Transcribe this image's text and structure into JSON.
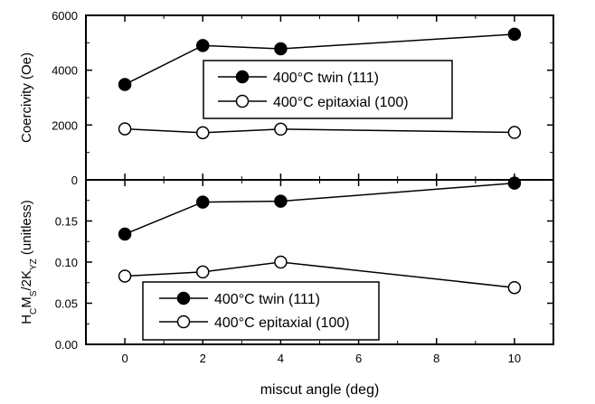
{
  "chart_data": [
    {
      "type": "line",
      "ylabel": "Coercivity (Oe)",
      "xlabel": "",
      "xlim": [
        -1,
        11
      ],
      "ylim": [
        0,
        6000
      ],
      "x_ticks": [
        0,
        2,
        4,
        6,
        8,
        10
      ],
      "y_ticks": [
        0,
        2000,
        4000,
        6000
      ],
      "y_tick_labels": [
        "0",
        "2000",
        "4000",
        "6000"
      ],
      "legend_position": "center",
      "series": [
        {
          "name": "400°C twin (111)",
          "marker": "filled-circle",
          "x": [
            0,
            2,
            4,
            10
          ],
          "y": [
            3480,
            4900,
            4780,
            5310
          ]
        },
        {
          "name": "400°C epitaxial (100)",
          "marker": "open-circle",
          "x": [
            0,
            2,
            4,
            10
          ],
          "y": [
            1860,
            1720,
            1850,
            1730
          ]
        }
      ]
    },
    {
      "type": "line",
      "ylabel_parts": [
        {
          "t": "H"
        },
        {
          "t": "C",
          "sub": true
        },
        {
          "t": "M"
        },
        {
          "t": "S",
          "sub": true
        },
        {
          "t": "/2K"
        },
        {
          "t": "YZ",
          "sub": true
        },
        {
          "t": " (unitless)"
        }
      ],
      "xlabel": "miscut angle (deg)",
      "xlim": [
        -1,
        11
      ],
      "ylim": [
        0,
        0.2
      ],
      "x_ticks": [
        0,
        2,
        4,
        6,
        8,
        10
      ],
      "x_tick_labels": [
        "0",
        "2",
        "4",
        "6",
        "8",
        "10"
      ],
      "y_ticks": [
        0,
        0.05,
        0.1,
        0.15
      ],
      "y_tick_labels": [
        "0.00",
        "0.05",
        "0.10",
        "0.15"
      ],
      "legend_position": "bottom-left",
      "series": [
        {
          "name": "400°C twin (111)",
          "marker": "filled-circle",
          "x": [
            0,
            2,
            4,
            10
          ],
          "y": [
            0.134,
            0.173,
            0.174,
            0.196
          ]
        },
        {
          "name": "400°C epitaxial (100)",
          "marker": "open-circle",
          "x": [
            0,
            2,
            4,
            10
          ],
          "y": [
            0.083,
            0.088,
            0.1,
            0.069
          ]
        }
      ]
    }
  ]
}
